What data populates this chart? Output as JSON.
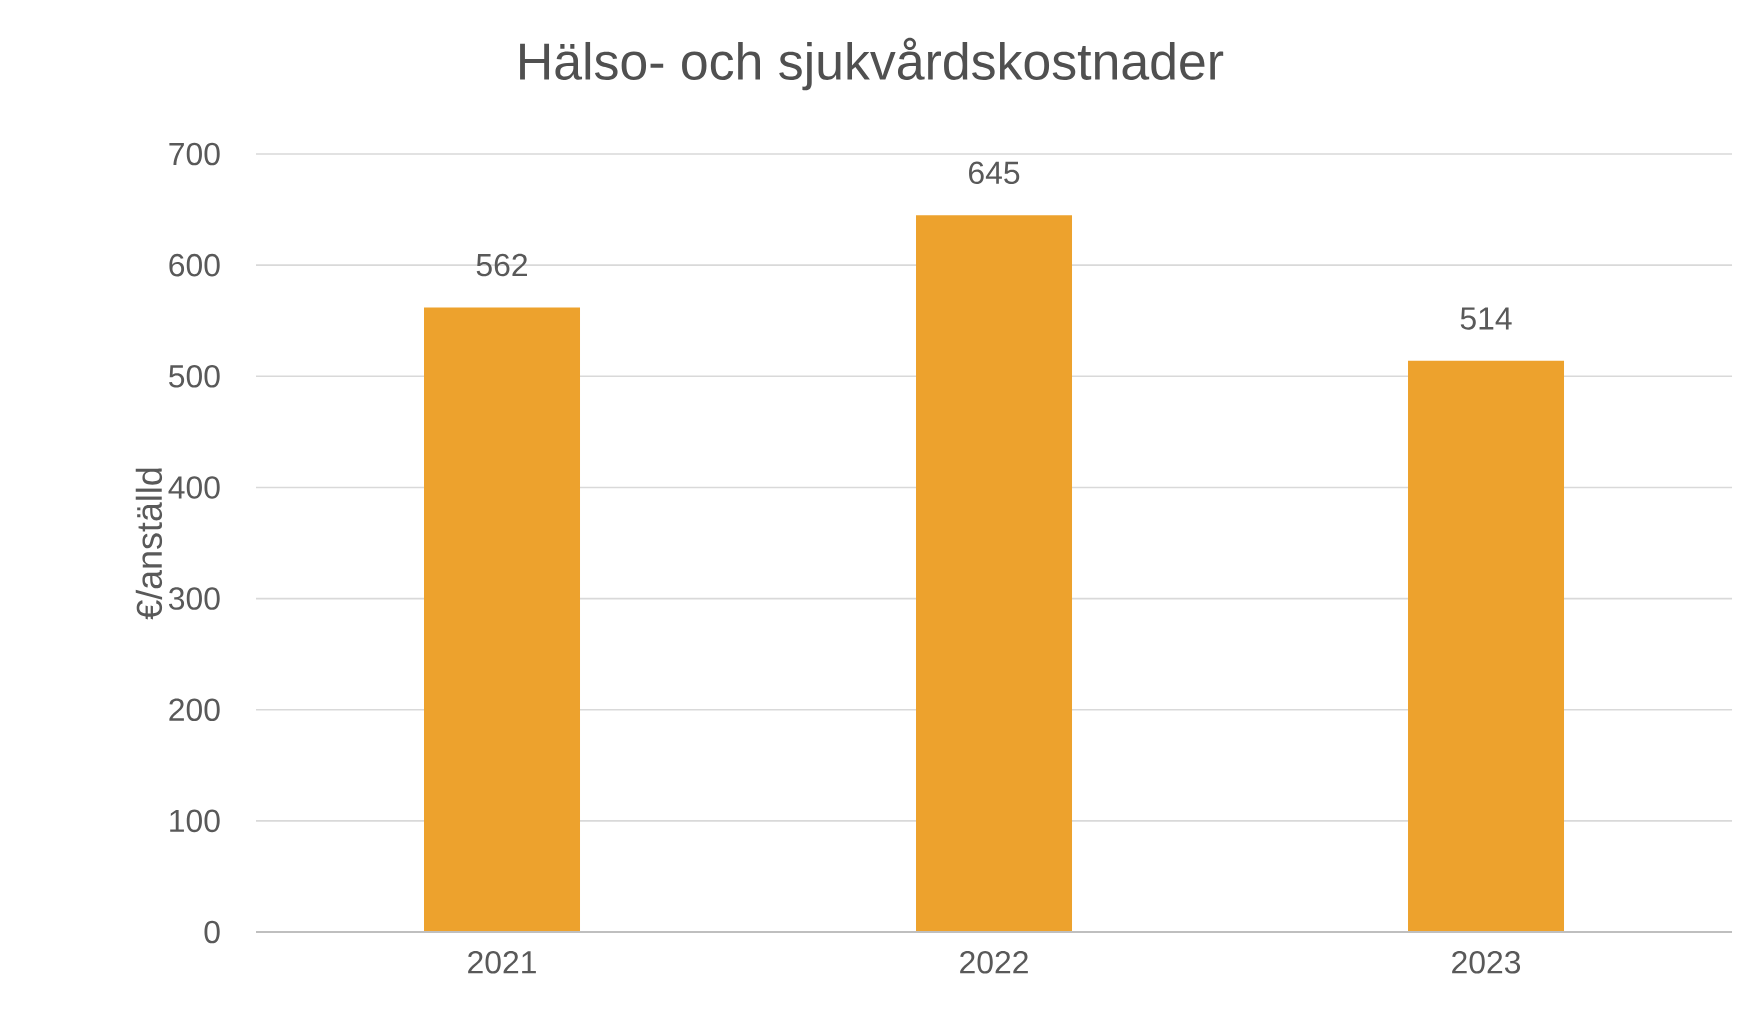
{
  "chart_data": {
    "type": "bar",
    "title": "Hälso- och sjukvårdskostnader",
    "ylabel": "€/anställd",
    "categories": [
      "2021",
      "2022",
      "2023"
    ],
    "values": [
      562,
      645,
      514
    ],
    "color": "#eda22d",
    "ylim": [
      0,
      700
    ],
    "yticks": [
      0,
      100,
      200,
      300,
      400,
      500,
      600,
      700
    ],
    "grid": "y",
    "data_labels": true
  }
}
